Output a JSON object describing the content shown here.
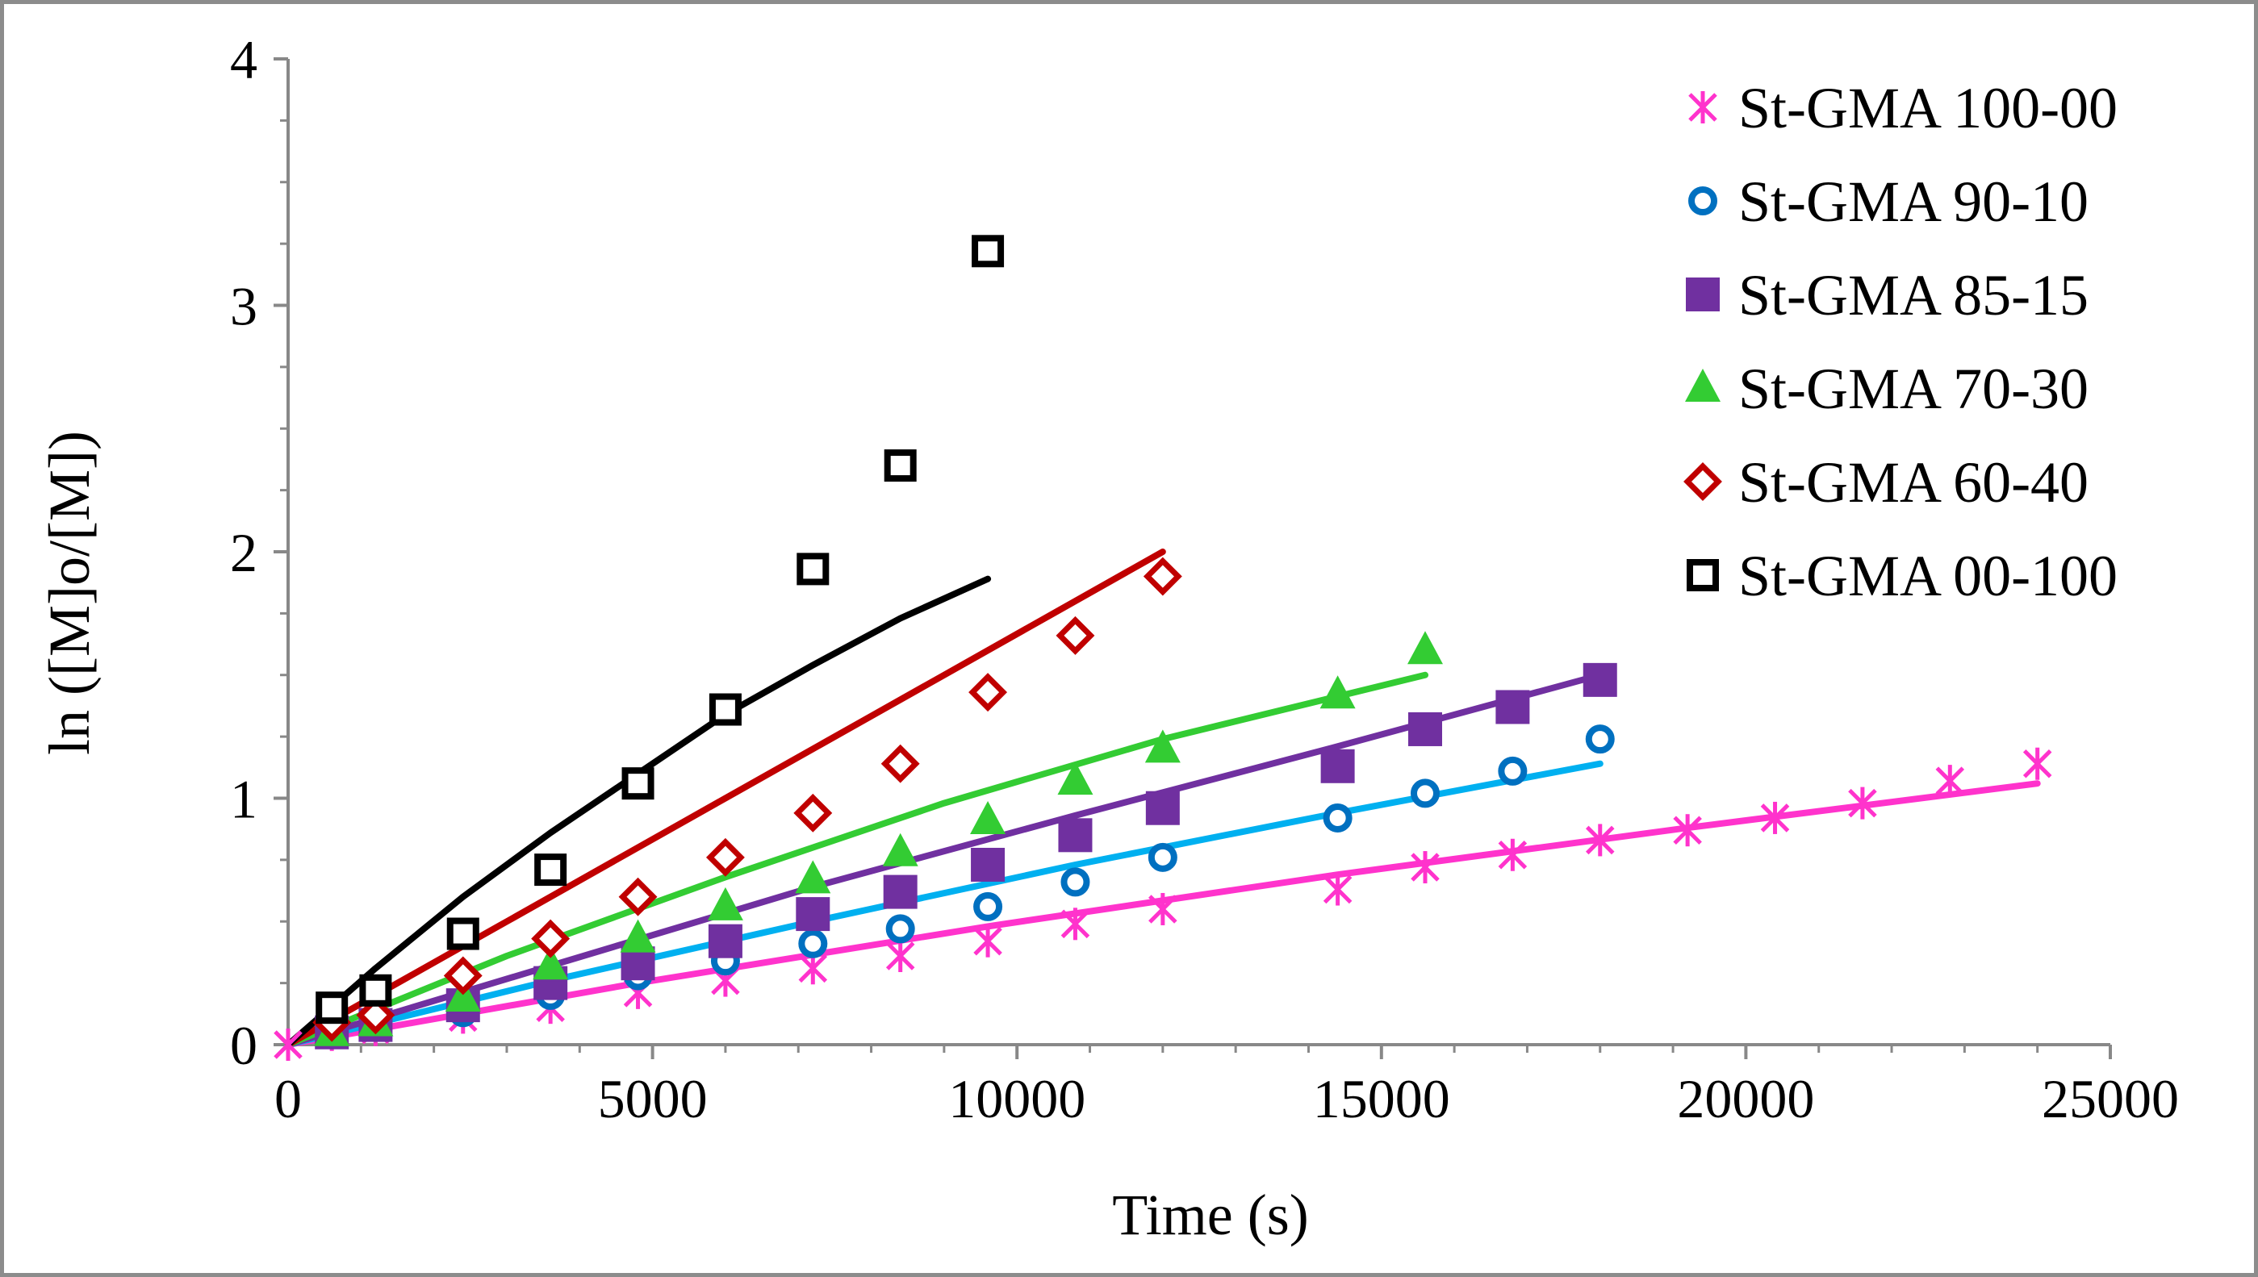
{
  "chart_data": {
    "type": "scatter",
    "xlabel": "Time (s)",
    "ylabel": "ln ([M]o/[M])",
    "xlim": [
      0,
      25000
    ],
    "ylim": [
      0,
      4
    ],
    "xticks": [
      0,
      5000,
      10000,
      15000,
      20000,
      25000
    ],
    "yticks": [
      0,
      1,
      2,
      3,
      4
    ],
    "xtick_labels": [
      "0",
      "5000",
      "10000",
      "15000",
      "20000",
      "25000"
    ],
    "ytick_labels": [
      "0",
      "1",
      "2",
      "3",
      "4"
    ],
    "grid": false,
    "legend_position": "top-right",
    "series": [
      {
        "name": "St-GMA 100-00",
        "marker": "asterisk",
        "color": "#FF33CC",
        "line_color": "#FF33CC",
        "x": [
          0,
          600,
          1200,
          2400,
          3600,
          4800,
          6000,
          7200,
          8400,
          9600,
          10800,
          12000,
          14400,
          15600,
          16800,
          18000,
          19200,
          20400,
          21600,
          22800,
          24000
        ],
        "y": [
          0,
          0.04,
          0.06,
          0.11,
          0.15,
          0.21,
          0.26,
          0.31,
          0.36,
          0.42,
          0.49,
          0.55,
          0.63,
          0.72,
          0.77,
          0.83,
          0.87,
          0.92,
          0.98,
          1.07,
          1.14
        ],
        "fit_x": [
          0,
          4800,
          9600,
          14400,
          19200,
          24000
        ],
        "fit_y": [
          0,
          0.25,
          0.48,
          0.69,
          0.88,
          1.06
        ]
      },
      {
        "name": "St-GMA 90-10",
        "marker": "circle",
        "color": "#0070C0",
        "line_color": "#00B0F0",
        "x": [
          600,
          1200,
          2400,
          3600,
          4800,
          6000,
          7200,
          8400,
          9600,
          10800,
          12000,
          14400,
          15600,
          16800,
          18000
        ],
        "y": [
          0.04,
          0.07,
          0.13,
          0.2,
          0.28,
          0.34,
          0.41,
          0.47,
          0.56,
          0.66,
          0.76,
          0.92,
          1.02,
          1.11,
          1.24
        ],
        "fit_x": [
          0,
          3600,
          7200,
          10800,
          14400,
          18000
        ],
        "fit_y": [
          0,
          0.26,
          0.5,
          0.73,
          0.94,
          1.14
        ]
      },
      {
        "name": "St-GMA 85-15",
        "marker": "square",
        "color": "#7030A0",
        "line_color": "#7030A0",
        "x": [
          600,
          1200,
          2400,
          3600,
          4800,
          6000,
          7200,
          8400,
          9600,
          10800,
          12000,
          14400,
          15600,
          16800,
          18000
        ],
        "y": [
          0.05,
          0.08,
          0.16,
          0.25,
          0.33,
          0.42,
          0.53,
          0.62,
          0.73,
          0.85,
          0.96,
          1.13,
          1.28,
          1.37,
          1.48
        ],
        "fit_x": [
          0,
          3600,
          7200,
          10800,
          14400,
          18000
        ],
        "fit_y": [
          0,
          0.32,
          0.64,
          0.93,
          1.21,
          1.5
        ]
      },
      {
        "name": "St-GMA 70-30",
        "marker": "triangle",
        "color": "#33CC33",
        "line_color": "#33CC33",
        "x": [
          600,
          1200,
          2400,
          3600,
          4800,
          6000,
          7200,
          8400,
          9600,
          10800,
          12000,
          14400,
          15600
        ],
        "y": [
          0.05,
          0.09,
          0.19,
          0.32,
          0.43,
          0.56,
          0.67,
          0.78,
          0.91,
          1.07,
          1.2,
          1.42,
          1.6
        ],
        "fit_x": [
          0,
          3000,
          6000,
          9000,
          12000,
          15600
        ],
        "fit_y": [
          0,
          0.36,
          0.68,
          0.98,
          1.24,
          1.5
        ]
      },
      {
        "name": "St-GMA 60-40",
        "marker": "diamond",
        "color": "#C00000",
        "line_color": "#C00000",
        "x": [
          600,
          1200,
          2400,
          3600,
          4800,
          6000,
          7200,
          8400,
          9600,
          10800,
          12000
        ],
        "y": [
          0.09,
          0.12,
          0.28,
          0.43,
          0.6,
          0.76,
          0.94,
          1.14,
          1.43,
          1.66,
          1.9
        ],
        "fit_x": [
          0,
          3000,
          6000,
          9000,
          12000
        ],
        "fit_y": [
          0,
          0.5,
          1.0,
          1.5,
          2.0
        ]
      },
      {
        "name": "St-GMA 00-100",
        "marker": "square-open",
        "color": "#000000",
        "line_color": "#000000",
        "x": [
          600,
          1200,
          2400,
          3600,
          4800,
          6000,
          7200,
          8400,
          9600
        ],
        "y": [
          0.15,
          0.22,
          0.45,
          0.71,
          1.06,
          1.36,
          1.93,
          2.35,
          3.22
        ],
        "fit_x": [
          0,
          1200,
          2400,
          3600,
          4800,
          6000,
          7200,
          8400,
          9600
        ],
        "fit_y": [
          0,
          0.31,
          0.6,
          0.86,
          1.1,
          1.34,
          1.54,
          1.73,
          1.89
        ]
      }
    ]
  }
}
